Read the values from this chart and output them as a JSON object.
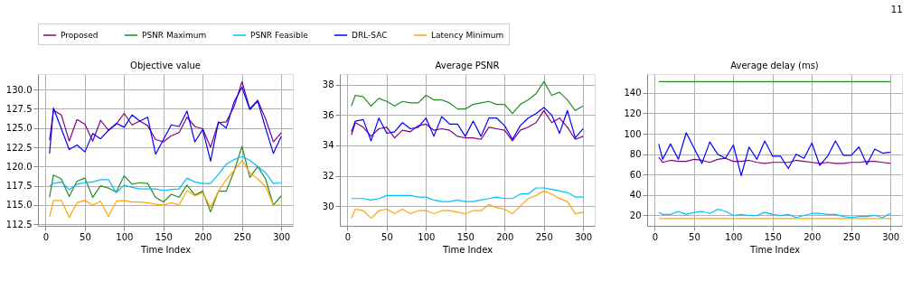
{
  "chart_data": [
    {
      "type": "line",
      "title": "Objective value",
      "xlabel": "Time Index",
      "grid": true,
      "legend": "top",
      "line_style": "solid",
      "x": [
        5,
        10,
        20,
        30,
        40,
        50,
        60,
        70,
        80,
        90,
        100,
        110,
        120,
        130,
        140,
        150,
        160,
        170,
        180,
        190,
        200,
        210,
        220,
        230,
        240,
        250,
        260,
        270,
        280,
        290,
        300
      ],
      "xlim": [
        -9.75,
        314.75
      ],
      "xticks": [
        0,
        50,
        100,
        150,
        200,
        250,
        300
      ],
      "ylim": [
        112.3,
        132.0
      ],
      "yticks": [
        112.5,
        {
          "value": 115,
          "label": "115.0"
        },
        117.5,
        {
          "value": 120,
          "label": "120.0"
        },
        122.5,
        {
          "value": 125,
          "label": "125.0"
        },
        127.5,
        {
          "value": 130,
          "label": "130.0"
        }
      ],
      "series": [
        {
          "name": "Proposed",
          "color": "#800080",
          "values": [
            123.4,
            127.3,
            126.7,
            123.3,
            126.1,
            125.5,
            123.3,
            126.0,
            124.7,
            125.5,
            126.9,
            125.4,
            125.9,
            125.3,
            123.5,
            123.2,
            124.0,
            124.4,
            126.4,
            125.2,
            124.9,
            122.5,
            125.7,
            125.8,
            127.8,
            131.0,
            127.5,
            128.6,
            126.2,
            123.2,
            124.4
          ]
        },
        {
          "name": "PSNR Maximum",
          "color": "#228b22",
          "values": [
            116.0,
            118.9,
            118.4,
            116.1,
            118.1,
            118.5,
            116.0,
            117.5,
            117.2,
            116.7,
            118.8,
            117.7,
            117.9,
            117.8,
            116.0,
            115.4,
            116.4,
            116.0,
            117.6,
            116.3,
            116.8,
            114.1,
            116.8,
            116.8,
            119.4,
            122.6,
            118.6,
            120.0,
            118.4,
            115.0,
            116.2
          ]
        },
        {
          "name": "PSNR Feasible",
          "color": "#00bfff",
          "values": [
            117.5,
            117.8,
            118.0,
            117.0,
            117.7,
            117.9,
            118.0,
            118.3,
            118.3,
            116.6,
            117.6,
            117.3,
            117.1,
            117.1,
            117.1,
            116.9,
            117.0,
            117.1,
            118.5,
            118.0,
            117.8,
            117.8,
            119.0,
            120.3,
            120.9,
            121.3,
            120.8,
            120.0,
            119.2,
            117.8,
            117.9
          ]
        },
        {
          "name": "DRL-SAC",
          "color": "#0000ff",
          "values": [
            121.7,
            127.6,
            124.9,
            122.2,
            122.8,
            121.9,
            124.3,
            123.6,
            124.7,
            125.6,
            125.1,
            126.7,
            125.9,
            126.4,
            121.6,
            123.5,
            125.4,
            125.2,
            127.2,
            123.2,
            124.8,
            120.7,
            125.8,
            125.0,
            128.4,
            130.3,
            127.4,
            128.5,
            125.0,
            121.7,
            123.9
          ]
        },
        {
          "name": "Latency Minimum",
          "color": "#ffa500",
          "values": [
            113.5,
            115.6,
            115.6,
            113.4,
            115.3,
            115.6,
            115.0,
            115.5,
            113.5,
            115.5,
            115.6,
            115.4,
            115.4,
            115.3,
            115.1,
            115.0,
            115.3,
            115.0,
            116.9,
            116.2,
            116.6,
            114.7,
            116.8,
            118.3,
            119.5,
            120.8,
            119.2,
            118.4,
            117.4,
            115.0,
            115.0
          ]
        }
      ]
    },
    {
      "type": "line",
      "title": "Average PSNR",
      "xlabel": "Time Index",
      "grid": true,
      "legend": "top",
      "line_style": "solid",
      "x": [
        5,
        10,
        20,
        30,
        40,
        50,
        60,
        70,
        80,
        90,
        100,
        110,
        120,
        130,
        140,
        150,
        160,
        170,
        180,
        190,
        200,
        210,
        220,
        230,
        240,
        250,
        260,
        270,
        280,
        290,
        300
      ],
      "xlim": [
        -9.75,
        314.75
      ],
      "xticks": [
        0,
        50,
        100,
        150,
        200,
        250,
        300
      ],
      "ylim": [
        28.7,
        38.7
      ],
      "yticks": [
        30,
        32,
        34,
        36,
        38
      ],
      "series": [
        {
          "name": "Proposed",
          "color": "#800080",
          "values": [
            34.7,
            35.5,
            35.2,
            34.6,
            35.1,
            35.2,
            34.5,
            35.0,
            34.9,
            35.3,
            35.4,
            35.0,
            35.1,
            35.0,
            34.6,
            34.5,
            34.5,
            34.4,
            35.2,
            35.1,
            35.0,
            34.3,
            35.0,
            35.2,
            35.5,
            36.3,
            35.5,
            35.8,
            35.2,
            34.4,
            34.6
          ]
        },
        {
          "name": "PSNR Maximum",
          "color": "#228b22",
          "values": [
            36.6,
            37.3,
            37.2,
            36.6,
            37.1,
            36.9,
            36.6,
            36.9,
            36.8,
            36.8,
            37.3,
            37.0,
            37.0,
            36.8,
            36.4,
            36.4,
            36.7,
            36.8,
            36.9,
            36.7,
            36.7,
            36.1,
            36.7,
            37.0,
            37.4,
            38.2,
            37.3,
            37.5,
            37.0,
            36.3,
            36.6
          ]
        },
        {
          "name": "PSNR Feasible",
          "color": "#00bfff",
          "values": [
            30.5,
            30.5,
            30.5,
            30.4,
            30.5,
            30.7,
            30.7,
            30.7,
            30.7,
            30.6,
            30.6,
            30.4,
            30.3,
            30.3,
            30.4,
            30.3,
            30.3,
            30.4,
            30.5,
            30.6,
            30.5,
            30.5,
            30.8,
            30.8,
            31.2,
            31.2,
            31.1,
            31.0,
            30.9,
            30.6,
            30.6
          ]
        },
        {
          "name": "DRL-SAC",
          "color": "#0000ff",
          "values": [
            34.9,
            35.6,
            35.7,
            34.3,
            35.8,
            34.8,
            34.9,
            35.5,
            35.1,
            35.2,
            35.8,
            34.6,
            35.9,
            35.4,
            35.4,
            34.6,
            35.6,
            34.6,
            35.8,
            35.8,
            35.3,
            34.4,
            35.3,
            35.8,
            36.1,
            36.5,
            36.0,
            34.8,
            36.3,
            34.5,
            35.1
          ]
        },
        {
          "name": "Latency Minimum",
          "color": "#ffa500",
          "values": [
            29.2,
            29.8,
            29.7,
            29.2,
            29.7,
            29.8,
            29.5,
            29.8,
            29.5,
            29.7,
            29.7,
            29.5,
            29.7,
            29.7,
            29.6,
            29.5,
            29.7,
            29.7,
            30.1,
            29.9,
            29.8,
            29.5,
            30.0,
            30.5,
            30.7,
            31.0,
            30.8,
            30.5,
            30.3,
            29.5,
            29.6
          ]
        }
      ]
    },
    {
      "type": "line",
      "title": "Average delay (ms)",
      "xlabel": "Time Index",
      "grid": true,
      "legend": "top",
      "line_style": "solid",
      "annotations": [
        "11"
      ],
      "x": [
        5,
        10,
        20,
        30,
        40,
        50,
        60,
        70,
        80,
        90,
        100,
        110,
        120,
        130,
        140,
        150,
        160,
        170,
        180,
        190,
        200,
        210,
        220,
        230,
        240,
        250,
        260,
        270,
        280,
        290,
        300
      ],
      "xlim": [
        -9.75,
        314.75
      ],
      "xticks": [
        0,
        50,
        100,
        150,
        200,
        250,
        300
      ],
      "ylim": [
        9.8,
        158.5
      ],
      "yticks": [
        20,
        40,
        60,
        80,
        100,
        120,
        140
      ],
      "series": [
        {
          "name": "Proposed",
          "color": "#800080",
          "values": [
            77,
            72,
            74,
            73,
            73,
            75,
            74,
            72,
            75,
            76,
            73,
            73,
            74,
            72,
            71,
            72,
            72,
            72,
            74,
            73,
            72,
            71,
            72,
            71,
            71,
            72,
            72,
            73,
            73,
            72,
            71
          ]
        },
        {
          "name": "PSNR Maximum",
          "color": "#228b22",
          "values": [
            151,
            151,
            151,
            151,
            151,
            151,
            151,
            151,
            151,
            151,
            151,
            151,
            151,
            151,
            151,
            151,
            151,
            151,
            151,
            151,
            151,
            151,
            151,
            151,
            151,
            151,
            151,
            151,
            151,
            151,
            151
          ]
        },
        {
          "name": "PSNR Feasible",
          "color": "#00bfff",
          "values": [
            23,
            21,
            21,
            24,
            21,
            23,
            24,
            22,
            26,
            24,
            20,
            21,
            20,
            20,
            23,
            21,
            20,
            21,
            18,
            20,
            22,
            22,
            21,
            21,
            19,
            18,
            19,
            19,
            20,
            18,
            22
          ]
        },
        {
          "name": "DRL-SAC",
          "color": "#0000ff",
          "values": [
            90,
            75,
            90,
            75,
            101,
            86,
            71,
            92,
            80,
            76,
            89,
            59,
            87,
            75,
            93,
            78,
            78,
            66,
            80,
            76,
            91,
            69,
            78,
            93,
            79,
            79,
            87,
            70,
            85,
            81,
            82
          ]
        },
        {
          "name": "Latency Minimum",
          "color": "#ffa500",
          "values": [
            17,
            17,
            17,
            17,
            17,
            17,
            17,
            17,
            17,
            17,
            17,
            17,
            17,
            17,
            17,
            17,
            17,
            17,
            17,
            17,
            17,
            17,
            17,
            17,
            17,
            17,
            17,
            17,
            17,
            17,
            17
          ]
        }
      ]
    }
  ]
}
